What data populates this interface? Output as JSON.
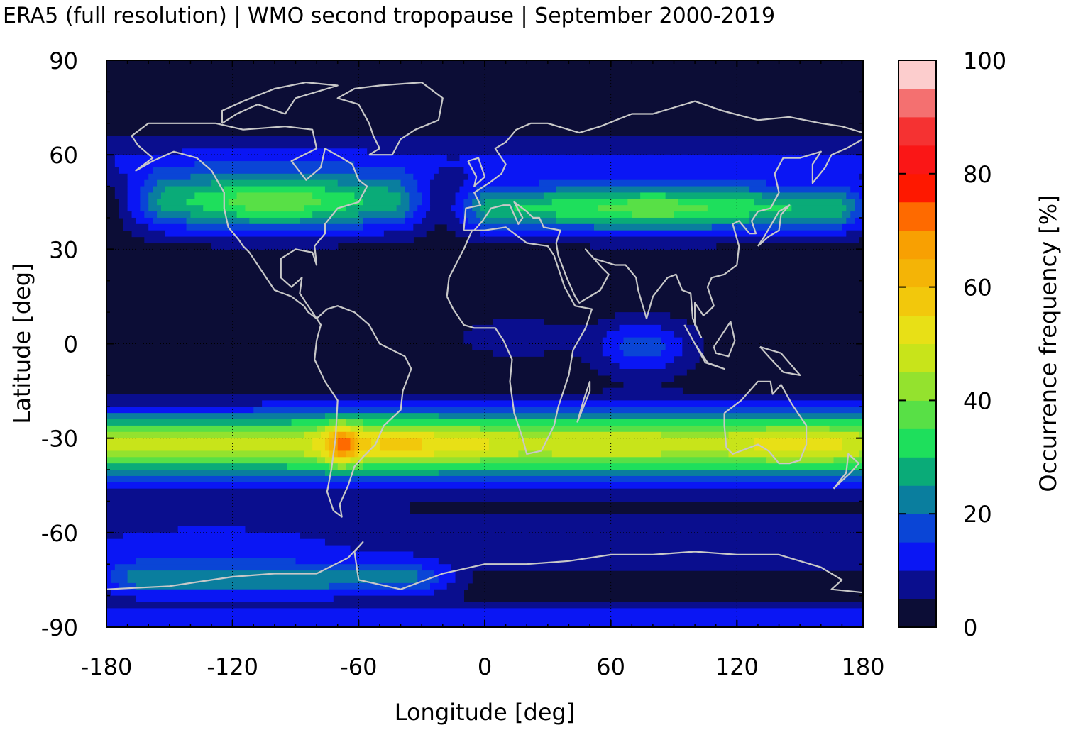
{
  "chart_data": {
    "type": "heatmap",
    "title": "ERA5 (full resolution) | WMO second tropopause | September 2000-2019",
    "xlabel": "Longitude [deg]",
    "ylabel": "Latitude [deg]",
    "colorbar_label": "Occurrence frequency [%]",
    "xlim": [
      -180,
      180
    ],
    "ylim": [
      -90,
      90
    ],
    "x_ticks": [
      -180,
      -120,
      -60,
      0,
      60,
      120,
      180
    ],
    "x_tick_labels": [
      "-180",
      "-120",
      "-60",
      "0",
      "60",
      "120",
      "180"
    ],
    "y_ticks": [
      90,
      60,
      30,
      0,
      -30,
      -60,
      -90
    ],
    "y_tick_labels": [
      "90",
      "60",
      "30",
      "0",
      "-30",
      "-60",
      "-90"
    ],
    "colorbar_ticks": [
      0,
      20,
      40,
      60,
      80,
      100
    ],
    "colorbar_tick_labels": [
      "0",
      "20",
      "40",
      "60",
      "80",
      "100"
    ],
    "colorbar_range": [
      0,
      100
    ],
    "colorbar_levels": [
      0,
      5,
      10,
      15,
      20,
      25,
      30,
      35,
      40,
      45,
      50,
      55,
      60,
      65,
      70,
      75,
      80,
      85,
      90,
      95,
      100
    ],
    "colorbar_colors": [
      "#0c0d36",
      "#0a0e8e",
      "#0a16f4",
      "#0a45d6",
      "#0a7e9e",
      "#0aab78",
      "#1edf5c",
      "#58e046",
      "#94e22e",
      "#c8e41a",
      "#e8e016",
      "#f2c80c",
      "#f4b406",
      "#f8a002",
      "#fe6a00",
      "#fe1800",
      "#fa1616",
      "#f53232",
      "#f47070",
      "#fccdcd"
    ],
    "grid": true,
    "grid_style": "dotted",
    "overlay": "coastlines",
    "coastline_color": "#c8c8c8",
    "pattern": {
      "background_frequency_pct": 2,
      "bands": [
        {
          "region": "southern subtropical band",
          "lat_center": -32,
          "lat_half_width": 8,
          "lon_range": [
            -180,
            180
          ],
          "peak_pct": 55
        },
        {
          "region": "South America hotspot",
          "lat": -32,
          "lon": -68,
          "peak_pct": 72
        },
        {
          "region": "North America / Atlantic band",
          "lat_center": 45,
          "lat_half_width": 8,
          "lon_range": [
            -170,
            -30
          ],
          "peak_pct": 35
        },
        {
          "region": "Eurasian band",
          "lat_center": 43,
          "lat_half_width": 6,
          "lon_range": [
            -10,
            180
          ],
          "peak_pct": 38
        },
        {
          "region": "Indian Ocean equatorial",
          "lat": 0,
          "lon": 75,
          "peak_pct": 17
        },
        {
          "region": "tropical Atlantic / Africa",
          "lat": 2,
          "lon": 20,
          "peak_pct": 8
        },
        {
          "region": "Antarctic coast",
          "lat": -75,
          "lon_range": [
            -180,
            -20
          ],
          "peak_pct": 20
        },
        {
          "region": "southern ring",
          "lat_center": -64,
          "lat_half_width": 9,
          "lon_range": [
            -180,
            180
          ],
          "peak_pct": 10
        }
      ]
    }
  }
}
